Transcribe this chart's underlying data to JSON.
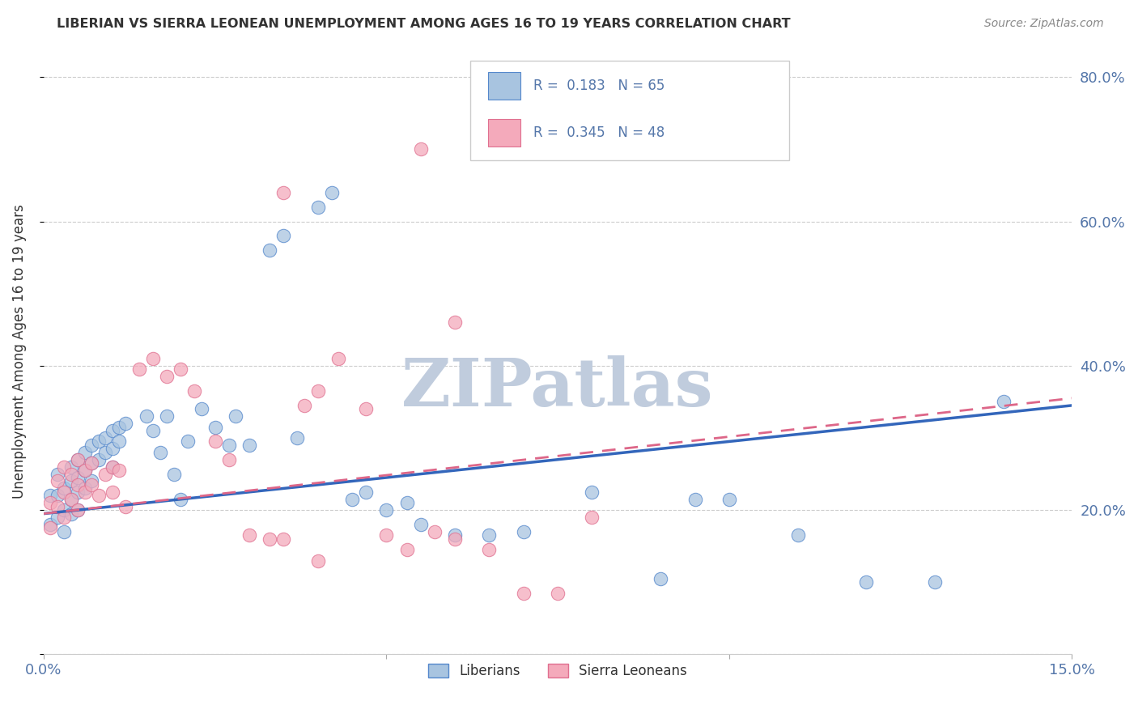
{
  "title": "LIBERIAN VS SIERRA LEONEAN UNEMPLOYMENT AMONG AGES 16 TO 19 YEARS CORRELATION CHART",
  "source": "Source: ZipAtlas.com",
  "ylabel": "Unemployment Among Ages 16 to 19 years",
  "xlim": [
    0.0,
    0.15
  ],
  "ylim": [
    0.0,
    0.84
  ],
  "ytick_values": [
    0.0,
    0.2,
    0.4,
    0.6,
    0.8
  ],
  "ytick_labels": [
    "",
    "20.0%",
    "40.0%",
    "60.0%",
    "80.0%"
  ],
  "xtick_values": [
    0.0,
    0.05,
    0.1,
    0.15
  ],
  "xtick_labels": [
    "0.0%",
    "",
    "",
    "15.0%"
  ],
  "liberians_R": 0.183,
  "liberians_N": 65,
  "sierraleoneans_R": 0.345,
  "sierraleoneans_N": 48,
  "blue_fill": "#A8C4E0",
  "blue_edge": "#5588CC",
  "pink_fill": "#F4AABB",
  "pink_edge": "#E07090",
  "blue_line_color": "#3366BB",
  "pink_line_color": "#DD6688",
  "axis_color": "#5577AA",
  "text_color": "#333333",
  "grid_color": "#CCCCCC",
  "watermark": "ZIPatlas",
  "watermark_color": "#C0CCDD",
  "legend_label_blue": "Liberians",
  "legend_label_pink": "Sierra Leoneans",
  "blue_line_y0": 0.195,
  "blue_line_y1": 0.345,
  "pink_line_y0": 0.195,
  "pink_line_y1": 0.355
}
